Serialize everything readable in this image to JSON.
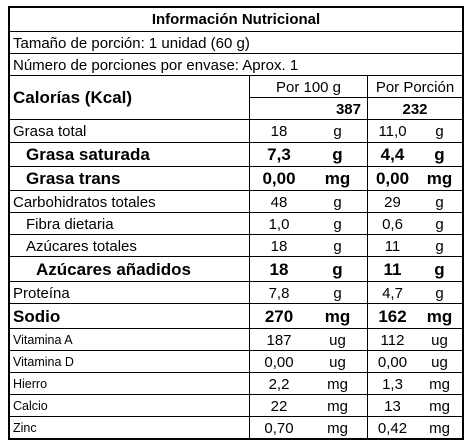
{
  "title": "Información Nutricional",
  "serving_size": "Tamaño de porción: 1 unidad (60 g)",
  "servings_per_container": "Número de porciones por envase: Aprox. 1",
  "header": {
    "calories_label": "Calorías (Kcal)",
    "per_100g_label": "Por 100 g",
    "per_serving_label": "Por Porción",
    "calories_per_100g": "387",
    "calories_per_serving": "232"
  },
  "nutrients": [
    {
      "label": "Grasa total",
      "per_100g": "18",
      "unit_100g": "g",
      "per_serving": "11,0",
      "unit_serving": "g"
    },
    {
      "label": "Grasa saturada",
      "per_100g": "7,3",
      "unit_100g": "g",
      "per_serving": "4,4",
      "unit_serving": "g"
    },
    {
      "label": "Grasa trans",
      "per_100g": "0,00",
      "unit_100g": "mg",
      "per_serving": "0,00",
      "unit_serving": "mg"
    },
    {
      "label": "Carbohidratos totales",
      "per_100g": "48",
      "unit_100g": "g",
      "per_serving": "29",
      "unit_serving": "g"
    },
    {
      "label": "Fibra dietaria",
      "per_100g": "1,0",
      "unit_100g": "g",
      "per_serving": "0,6",
      "unit_serving": "g"
    },
    {
      "label": "Azúcares totales",
      "per_100g": "18",
      "unit_100g": "g",
      "per_serving": "11",
      "unit_serving": "g"
    },
    {
      "label": "Azúcares añadidos",
      "per_100g": "18",
      "unit_100g": "g",
      "per_serving": "11",
      "unit_serving": "g"
    },
    {
      "label": "Proteína",
      "per_100g": "7,8",
      "unit_100g": "g",
      "per_serving": "4,7",
      "unit_serving": "g"
    },
    {
      "label": "Sodio",
      "per_100g": "270",
      "unit_100g": "mg",
      "per_serving": "162",
      "unit_serving": "mg"
    },
    {
      "label": "Vitamina A",
      "per_100g": "187",
      "unit_100g": "ug",
      "per_serving": "112",
      "unit_serving": "ug"
    },
    {
      "label": "Vitamina D",
      "per_100g": "0,00",
      "unit_100g": "ug",
      "per_serving": "0,00",
      "unit_serving": "ug"
    },
    {
      "label": "Hierro",
      "per_100g": "2,2",
      "unit_100g": "mg",
      "per_serving": "1,3",
      "unit_serving": "mg"
    },
    {
      "label": "Calcio",
      "per_100g": "22",
      "unit_100g": "mg",
      "per_serving": "13",
      "unit_serving": "mg"
    },
    {
      "label": "Zinc",
      "per_100g": "0,70",
      "unit_100g": "mg",
      "per_serving": "0,42",
      "unit_serving": "mg"
    }
  ]
}
